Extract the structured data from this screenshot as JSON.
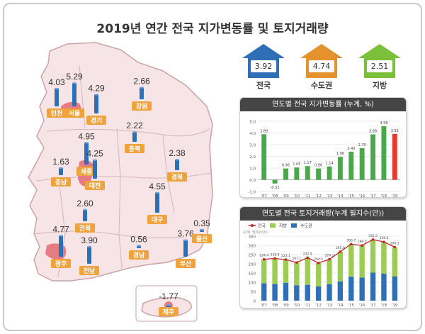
{
  "title": "2019년 연간 전국 지가변동률 및 토지거래량",
  "summary": [
    {
      "name": "전국",
      "value": "3.92",
      "color": "#2f6fb6"
    },
    {
      "name": "수도권",
      "value": "4.74",
      "color": "#e4922d"
    },
    {
      "name": "지방",
      "value": "2.51",
      "color": "#7bbf3a"
    }
  ],
  "chart_data": [
    {
      "type": "map",
      "title": "",
      "regions": [
        {
          "name": "서울",
          "value": 5.29
        },
        {
          "name": "인천",
          "value": 4.03
        },
        {
          "name": "경기",
          "value": 4.29
        },
        {
          "name": "강원",
          "value": 2.66
        },
        {
          "name": "충북",
          "value": 2.22
        },
        {
          "name": "세종",
          "value": 4.95
        },
        {
          "name": "대전",
          "value": 4.25
        },
        {
          "name": "충남",
          "value": 1.63
        },
        {
          "name": "경북",
          "value": 2.38
        },
        {
          "name": "대구",
          "value": 4.55
        },
        {
          "name": "전북",
          "value": 2.6
        },
        {
          "name": "광주",
          "value": 4.77
        },
        {
          "name": "전남",
          "value": 3.9
        },
        {
          "name": "경남",
          "value": 0.56
        },
        {
          "name": "부산",
          "value": 3.76
        },
        {
          "name": "울산",
          "value": 0.35
        },
        {
          "name": "제주",
          "value": -1.77
        }
      ],
      "value_labels": [
        "5.29",
        "4.03",
        "4.29",
        "2.66",
        "2.22",
        "4.95",
        "4.25",
        "1.63",
        "2.38",
        "4.55",
        "2.60",
        "4.77",
        "3.90",
        "0.56",
        "3.76",
        "0.35",
        "-1.77"
      ]
    },
    {
      "type": "bar",
      "title": "연도별 전국 지가변동률 (누계, %)",
      "categories": [
        "'07",
        "'08",
        "'09",
        "'10",
        "'11",
        "'12",
        "'13",
        "'14",
        "'15",
        "'16",
        "'17",
        "'18",
        "'19"
      ],
      "values": [
        3.89,
        -0.32,
        0.96,
        1.05,
        1.17,
        0.96,
        1.14,
        1.96,
        2.4,
        2.7,
        3.88,
        4.58,
        3.92
      ],
      "value_labels": [
        "3.89",
        "-0.32",
        "0.96",
        "1.05",
        "1.17",
        "0.96",
        "1.14",
        "1.96",
        "2.40",
        "2.70",
        "3.88",
        "4.58",
        "3.92"
      ],
      "ylim": [
        -1.0,
        5.0
      ],
      "yticks": [
        "5.0",
        "4.0",
        "3.0",
        "2.0",
        "1.0",
        "0.0",
        "-1.0"
      ],
      "colors": {
        "normal": "#4aa84a",
        "highlight": "#e43b2c"
      },
      "grid": true
    },
    {
      "type": "bar",
      "title": "연도별 전국 토지거래량(누계 필지수(만))",
      "ylabel": "(단위: 필지수(만))",
      "legend": [
        "전국",
        "지방",
        "수도권"
      ],
      "legend_position": "top-left",
      "categories": [
        "'07",
        "'08",
        "'09",
        "'10",
        "'11",
        "'12",
        "'13",
        "'14",
        "'15",
        "'16",
        "'17",
        "'18",
        "'19"
      ],
      "series": [
        {
          "name": "전국",
          "type": "line",
          "values": [
            224.4,
            228.9,
            223.1,
            207.1,
            232.9,
            204.5,
            224.1,
            265.8,
            306.7,
            299.5,
            331.5,
            318.6,
            290.2
          ]
        },
        {
          "name": "지방",
          "type": "bar",
          "values": [
            130.4,
            137.9,
            126.1,
            123.1,
            146.9,
            127.5,
            134.1,
            160.8,
            176.7,
            174.5,
            179.5,
            171.6,
            158.2
          ]
        },
        {
          "name": "수도권",
          "type": "bar",
          "values": [
            94,
            91,
            97,
            84,
            86,
            77,
            90,
            105,
            130,
            125,
            152,
            147,
            132
          ]
        }
      ],
      "value_labels": [
        "224.4",
        "228.9",
        "223.1",
        "207.1",
        "232.9",
        "204.5",
        "224.1",
        "265.8",
        "306.7",
        "299.5",
        "331.5",
        "318.6",
        "290.2"
      ],
      "ylim": [
        0,
        350
      ],
      "yticks": [
        "350",
        "300",
        "250",
        "200",
        "150",
        "100",
        "50",
        "0"
      ],
      "colors": {
        "line": "#c0282d",
        "local": "#9ccc54",
        "capital": "#2f6fb6"
      },
      "grid": true
    }
  ]
}
